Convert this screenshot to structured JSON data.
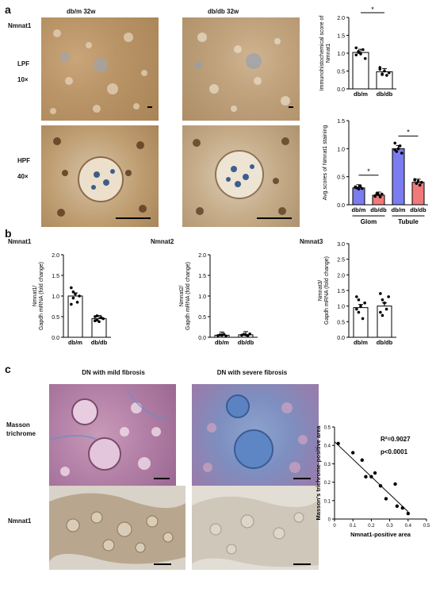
{
  "panels": {
    "a": "a",
    "b": "b",
    "c": "c"
  },
  "a": {
    "col_left": "db/m  32w",
    "col_right": "db/db  32w",
    "row_marker": "Nmnat1",
    "lpf": "LPF",
    "lpf_mag": "10×",
    "hpf": "HPF",
    "hpf_mag": "40×"
  },
  "b": {
    "titles": [
      "Nmnat1",
      "Nmnat2",
      "Nmnat3"
    ]
  },
  "c": {
    "col_left": "DN with mild fibrosis",
    "col_right": "DN with severe fibrosis",
    "row1": "Masson trichrome",
    "row2": "Nmnat1"
  },
  "chart_data": [
    {
      "type": "bar",
      "id": "ihc-score",
      "categories": [
        "db/m",
        "db/db"
      ],
      "values": [
        1.02,
        0.48
      ],
      "ylabel": "Immunohistochemical score of Nmnat1",
      "ylim": [
        0,
        2.0
      ],
      "yticks": [
        "0.0",
        "0.5",
        "1.0",
        "1.5",
        "2.0"
      ],
      "significance": "*",
      "bar_colors": [
        "#ffffff",
        "#ffffff"
      ],
      "points": [
        [
          1.15,
          1.05,
          0.98,
          1.1,
          0.85,
          0.95,
          1.02
        ],
        [
          0.6,
          0.42,
          0.5,
          0.38,
          0.45,
          0.55,
          0.4
        ]
      ]
    },
    {
      "type": "bar",
      "id": "avg-score",
      "categories": [
        "db/m",
        "db/db",
        "db/m",
        "db/db"
      ],
      "groups": [
        "Glom",
        "Tubule"
      ],
      "values": [
        0.3,
        0.17,
        1.0,
        0.4
      ],
      "ylabel": "Avg.scores of Nmnat1 staining",
      "ylim": [
        0,
        1.5
      ],
      "yticks": [
        "0.0",
        "0.5",
        "1.0",
        "1.5"
      ],
      "significance": [
        "*",
        "*"
      ],
      "bar_colors": [
        "#7b7cf0",
        "#f07a7a",
        "#7b7cf0",
        "#f07a7a"
      ],
      "points": [
        [
          0.32,
          0.3,
          0.28,
          0.33,
          0.29,
          0.31
        ],
        [
          0.15,
          0.2,
          0.18,
          0.14,
          0.19,
          0.16
        ],
        [
          1.1,
          0.95,
          1.0,
          1.05,
          0.92,
          0.98
        ],
        [
          0.45,
          0.38,
          0.42,
          0.35,
          0.4,
          0.44
        ]
      ]
    },
    {
      "type": "bar",
      "id": "nmnat1-mrna",
      "categories": [
        "db/m",
        "db/db"
      ],
      "values": [
        1.0,
        0.45
      ],
      "ylabel": "Nmnat1/ Gapdh mRNA (fold change)",
      "ylim": [
        0,
        2.0
      ],
      "yticks": [
        "0.0",
        "0.5",
        "1.0",
        "1.5",
        "2.0"
      ],
      "points": [
        [
          1.2,
          0.95,
          1.05,
          0.85,
          1.0,
          0.8,
          1.1
        ],
        [
          0.5,
          0.42,
          0.38,
          0.48,
          0.45,
          0.4,
          0.52
        ]
      ]
    },
    {
      "type": "bar",
      "id": "nmnat2-mrna",
      "categories": [
        "db/m",
        "db/db"
      ],
      "values": [
        0.05,
        0.06
      ],
      "ylabel": "Nmnat2/ Gapdh mRNA (fold change)",
      "ylim": [
        0,
        2.0
      ],
      "yticks": [
        "0.0",
        "0.5",
        "1.0",
        "1.5",
        "2.0"
      ],
      "points": [
        [
          0.04,
          0.06,
          0.05,
          0.07,
          0.03
        ],
        [
          0.05,
          0.07,
          0.06,
          0.04,
          0.08
        ]
      ]
    },
    {
      "type": "bar",
      "id": "nmnat3-mrna",
      "categories": [
        "db/m",
        "db/db"
      ],
      "values": [
        0.95,
        1.0
      ],
      "ylabel": "Nmnat3/ Gapdh mRNA (fold change)",
      "ylim": [
        0,
        3.0
      ],
      "yticks": [
        "0.0",
        "0.5",
        "1.0",
        "1.5",
        "2.0",
        "2.5",
        "3.0"
      ],
      "points": [
        [
          1.3,
          0.8,
          1.0,
          0.6,
          1.1,
          0.9,
          1.2
        ],
        [
          1.4,
          0.7,
          1.1,
          0.9,
          1.3,
          0.8,
          1.2
        ]
      ]
    },
    {
      "type": "scatter",
      "id": "correlation",
      "x": [
        0.02,
        0.1,
        0.15,
        0.17,
        0.2,
        0.22,
        0.25,
        0.28,
        0.33,
        0.34,
        0.37,
        0.4
      ],
      "y": [
        0.41,
        0.36,
        0.32,
        0.23,
        0.23,
        0.25,
        0.18,
        0.11,
        0.19,
        0.07,
        0.06,
        0.03
      ],
      "fit": [
        [
          0.0,
          0.42
        ],
        [
          0.4,
          0.04
        ]
      ],
      "xlabel": "Nmnat1-positive area",
      "ylabel": "Masson's trichrome-positive area",
      "xlim": [
        0,
        0.5
      ],
      "ylim": [
        0,
        0.5
      ],
      "xticks": [
        "0",
        "0.1",
        "0.2",
        "0.3",
        "0.4",
        "0.5"
      ],
      "yticks": [
        "0",
        "0.1",
        "0.2",
        "0.3",
        "0.4",
        "0.5"
      ],
      "annotations": [
        "R²=0.9027",
        "p<0.0001"
      ]
    }
  ]
}
